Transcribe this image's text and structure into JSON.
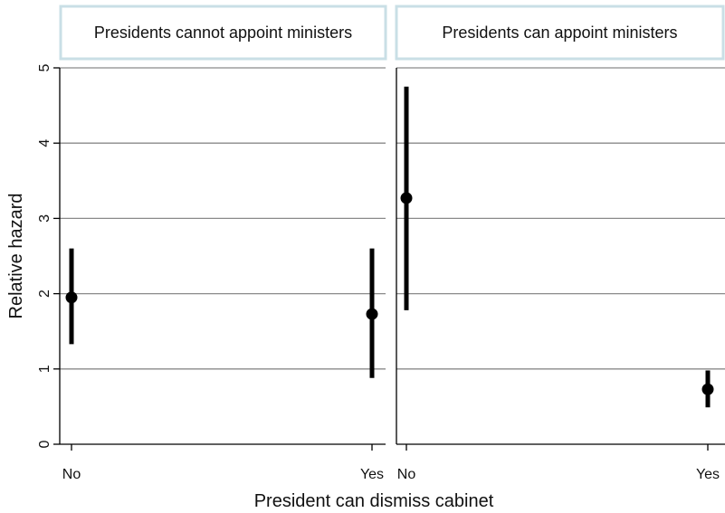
{
  "chart_data": {
    "type": "scatter",
    "xlabel": "President can dismiss cabinet",
    "ylabel": "Relative hazard",
    "ylim": [
      0,
      5
    ],
    "yticks": [
      0,
      1,
      2,
      3,
      4,
      5
    ],
    "categories": [
      "No",
      "Yes"
    ],
    "grid": true,
    "panels": [
      {
        "title": "Presidents cannot appoint ministers",
        "points": [
          {
            "x": "No",
            "y": 1.95,
            "lower": 1.33,
            "upper": 2.6
          },
          {
            "x": "Yes",
            "y": 1.73,
            "lower": 0.88,
            "upper": 2.6
          }
        ]
      },
      {
        "title": "Presidents can appoint ministers",
        "points": [
          {
            "x": "No",
            "y": 3.27,
            "lower": 1.78,
            "upper": 4.75
          },
          {
            "x": "Yes",
            "y": 0.73,
            "lower": 0.49,
            "upper": 0.98
          }
        ]
      }
    ]
  }
}
